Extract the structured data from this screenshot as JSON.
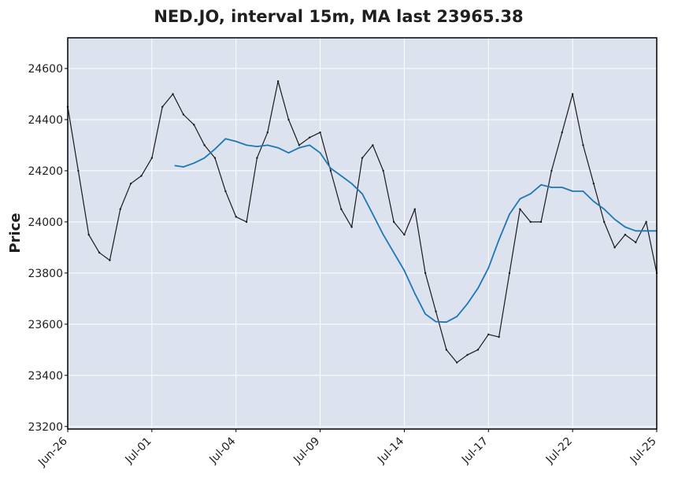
{
  "chart_data": {
    "type": "line",
    "title": "NED.JO, interval 15m, MA last 23965.38",
    "xlabel": "",
    "ylabel": "Price",
    "ylim": [
      23190,
      24720
    ],
    "grid": true,
    "x_ticks": [
      "Jun-26",
      "Jul-01",
      "Jul-04",
      "Jul-09",
      "Jul-14",
      "Jul-17",
      "Jul-22",
      "Jul-25"
    ],
    "y_ticks": [
      23200,
      23400,
      23600,
      23800,
      24000,
      24200,
      24400,
      24600
    ],
    "series": [
      {
        "kind": "price",
        "x": [
          0,
          0.5,
          1,
          1.5,
          2,
          2.5,
          3,
          3.5,
          4,
          4.5,
          5,
          5.5,
          6,
          6.5,
          7,
          7.5,
          8,
          8.5,
          9,
          9.5,
          10,
          10.5,
          11,
          11.5,
          12,
          12.5,
          13,
          13.5,
          14,
          14.5,
          15,
          15.5,
          16,
          16.5,
          17,
          17.5,
          18,
          18.5,
          19,
          19.5,
          20,
          20.5,
          21,
          21.5,
          22,
          22.5,
          23,
          23.5,
          24,
          24.5,
          25,
          25.5,
          26,
          26.5,
          27,
          27.5,
          28
        ],
        "values": [
          24450,
          24200,
          23950,
          23880,
          23850,
          24050,
          24150,
          24180,
          24250,
          24450,
          24500,
          24420,
          24380,
          24300,
          24250,
          24120,
          24020,
          24000,
          24250,
          24350,
          24550,
          24400,
          24300,
          24330,
          24350,
          24200,
          24050,
          23980,
          24250,
          24300,
          24200,
          24000,
          23950,
          24050,
          23800,
          23650,
          23500,
          23450,
          23480,
          23500,
          23560,
          23550,
          23800,
          24050,
          24000,
          24000,
          24200,
          24350,
          24500,
          24300,
          24150,
          24000,
          23900,
          23950,
          23920,
          24000,
          23800
        ]
      },
      {
        "kind": "ma",
        "x": [
          5.1,
          5.5,
          6,
          6.5,
          7,
          7.5,
          8,
          8.5,
          9,
          9.5,
          10,
          10.5,
          11,
          11.5,
          12,
          12.5,
          13,
          13.5,
          14,
          14.5,
          15,
          15.5,
          16,
          16.5,
          17,
          17.5,
          18,
          18.5,
          19,
          19.5,
          20,
          20.5,
          21,
          21.5,
          22,
          22.5,
          23,
          23.5,
          24,
          24.5,
          25,
          25.5,
          26,
          26.5,
          27,
          27.5,
          28
        ],
        "values": [
          24220,
          24215,
          24230,
          24250,
          24285,
          24325,
          24315,
          24300,
          24295,
          24300,
          24290,
          24270,
          24290,
          24300,
          24270,
          24210,
          24180,
          24150,
          24110,
          24030,
          23950,
          23880,
          23810,
          23720,
          23640,
          23610,
          23608,
          23630,
          23680,
          23740,
          23820,
          23930,
          24030,
          24090,
          24110,
          24145,
          24135,
          24135,
          24120,
          24120,
          24080,
          24050,
          24010,
          23980,
          23965,
          23965,
          23965
        ]
      }
    ],
    "colors": {
      "plot_background": "#dde2ef",
      "grid": "#ffffff",
      "price_line": "#1a1a1a",
      "ma_line": "#1f77b4",
      "frame": "#000000"
    }
  }
}
